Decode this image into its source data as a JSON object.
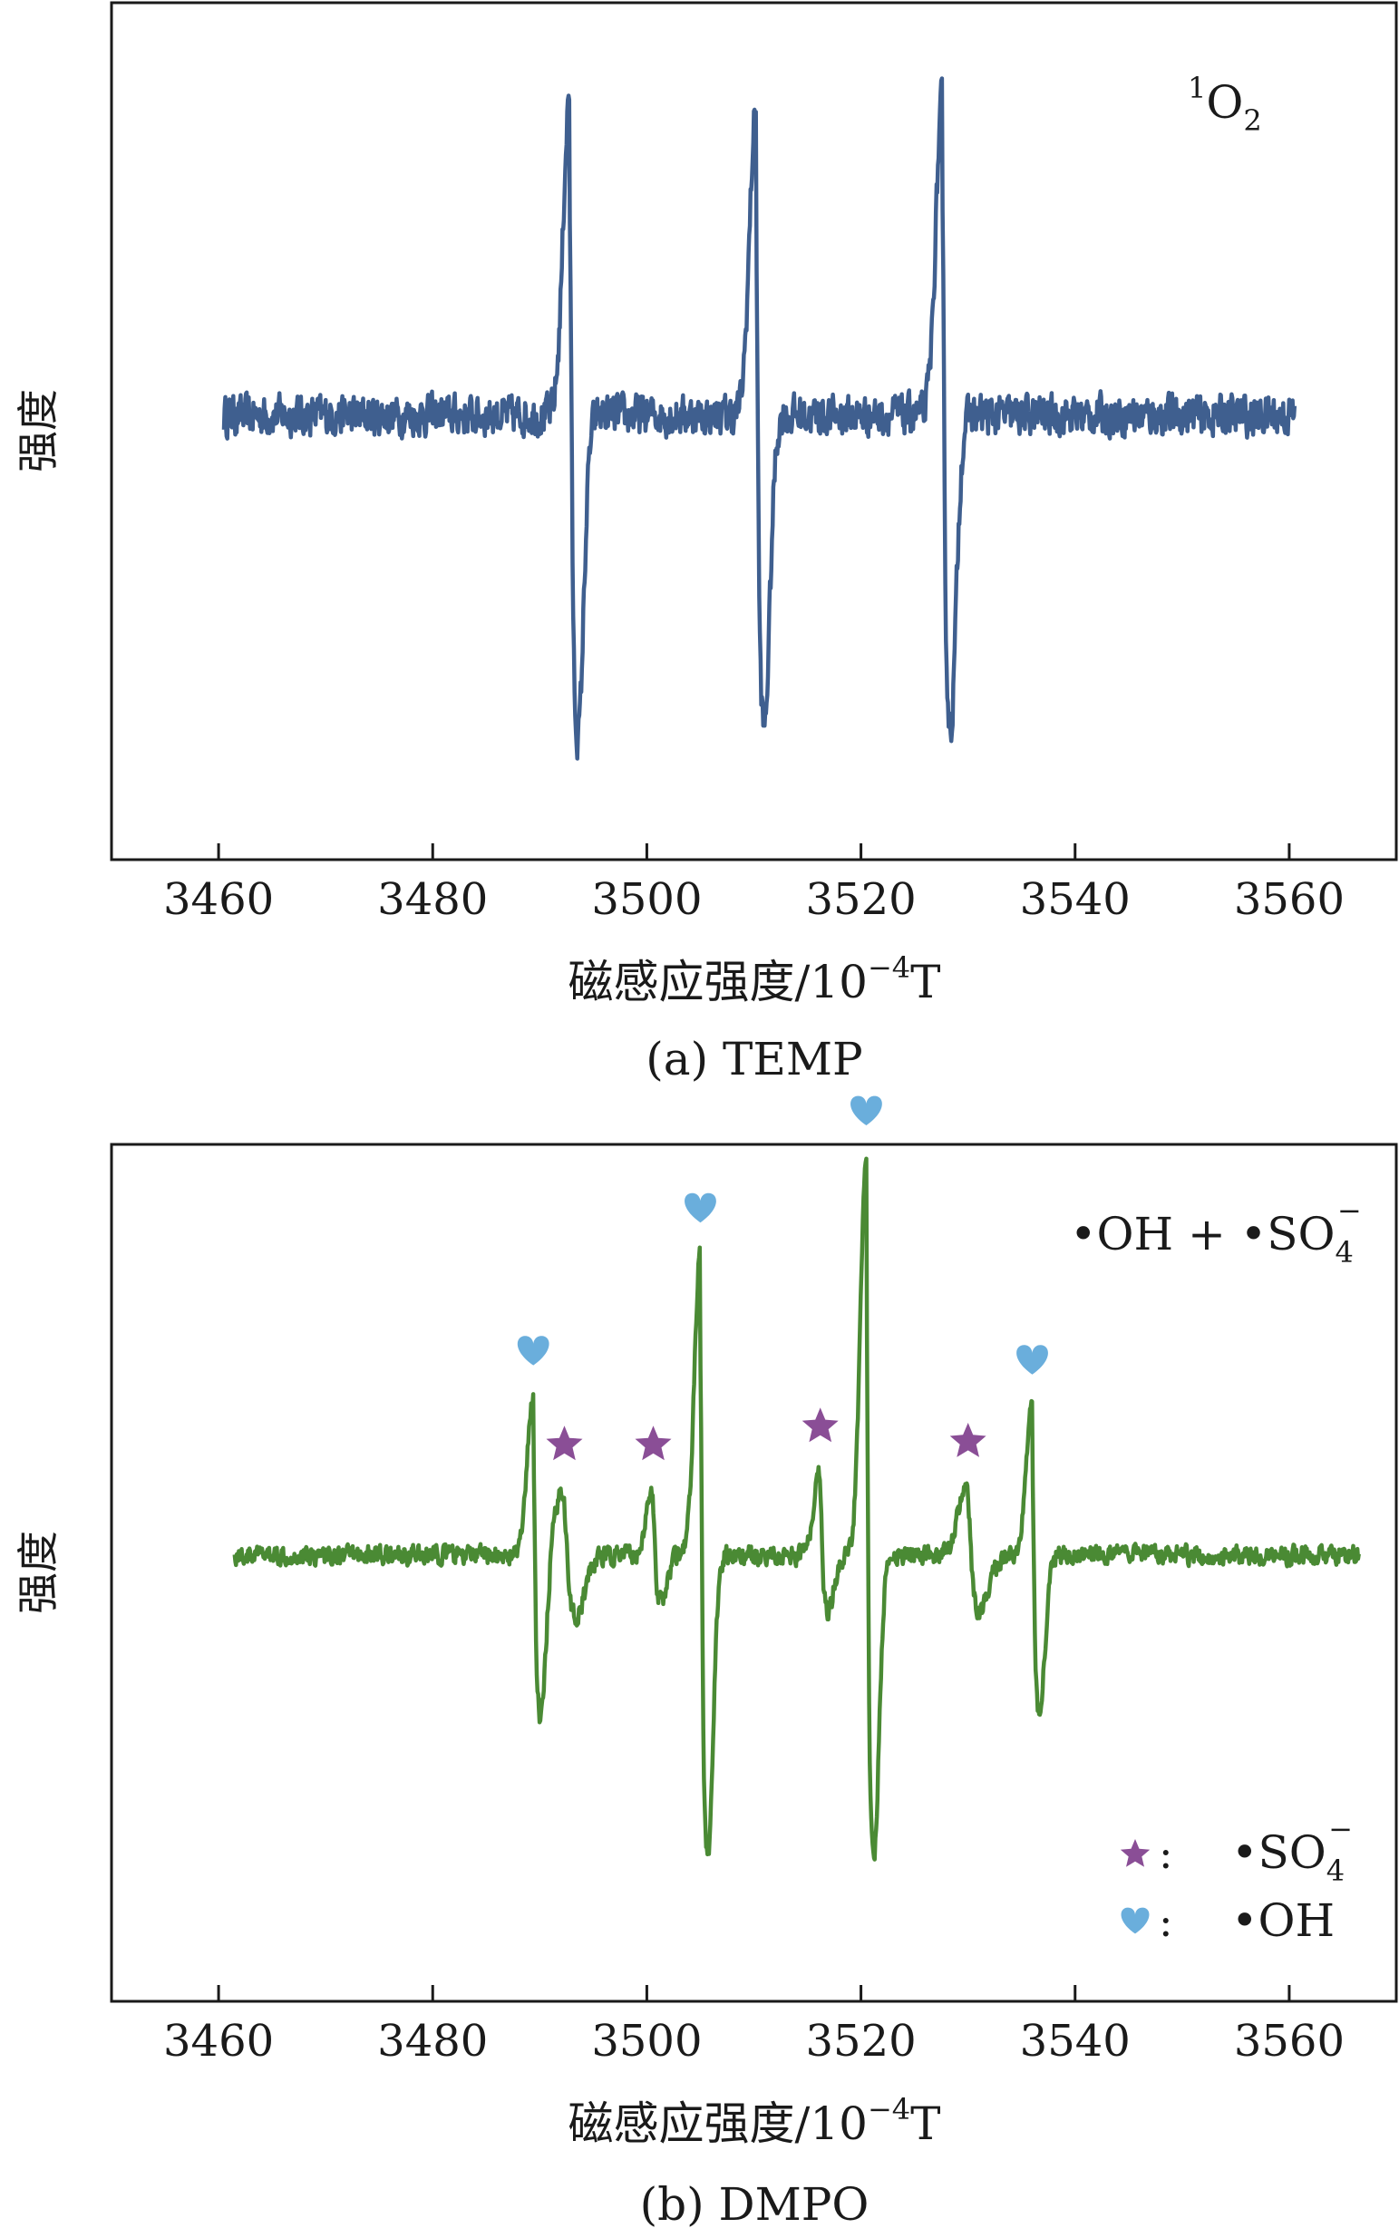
{
  "charts": [
    {
      "type": "line",
      "panel_label": "(a) TEMP",
      "annotation": {
        "main": "O",
        "sup": "1",
        "sub": "2"
      },
      "ylabel": "强度",
      "xlabel": {
        "text": "磁感应强度/10",
        "sup": "−4",
        "unit": "T"
      },
      "xlim": [
        3450,
        3570
      ],
      "xticks": [
        3460,
        3480,
        3500,
        3520,
        3540,
        3560
      ],
      "yticks": [],
      "line_color": "#3f5f8f",
      "series": [
        {
          "x_range": [
            3460.5,
            3560.5
          ],
          "baseline": 0,
          "noise": 0.05,
          "peaks": [
            {
              "center": 3492.8,
              "width": 0.6,
              "up": 1.0,
              "down": -1.0
            },
            {
              "center": 3510.2,
              "width": 0.6,
              "up": 0.95,
              "down": -0.97
            },
            {
              "center": 3527.6,
              "width": 0.6,
              "up": 0.98,
              "down": -0.97
            }
          ]
        }
      ]
    },
    {
      "type": "line",
      "panel_label": "(b) DMPO",
      "annotation": {
        "text": "•OH + •SO",
        "sub": "4",
        "sup": "−"
      },
      "ylabel": "强度",
      "xlabel": {
        "text": "磁感应强度/10",
        "sup": "−4",
        "unit": "T"
      },
      "xlim": [
        3450,
        3570
      ],
      "xticks": [
        3460,
        3480,
        3500,
        3520,
        3540,
        3560
      ],
      "yticks": [],
      "line_color": "#4a8a34",
      "marker_colors": {
        "heart": "#6aaedc",
        "star": "#8a4e96"
      },
      "legend": {
        "position": "bottom-right",
        "items": [
          {
            "marker": "star",
            "sep": ":",
            "text": "•SO",
            "sub": "4",
            "sup": "−"
          },
          {
            "marker": "heart",
            "sep": ":",
            "text": "•OH"
          }
        ]
      },
      "series": [
        {
          "x_range": [
            3461.5,
            3566.5
          ],
          "baseline": 0,
          "noise": 0.025,
          "peaks": [
            {
              "center": 3489.4,
              "width": 0.55,
              "up": 0.53,
              "down": -0.55,
              "marker": "heart"
            },
            {
              "center": 3492.3,
              "width": 0.9,
              "up": 0.22,
              "down": -0.2,
              "marker": "star"
            },
            {
              "center": 3500.6,
              "width": 0.6,
              "up": 0.22,
              "down": -0.15,
              "marker": "star"
            },
            {
              "center": 3505.0,
              "width": 0.55,
              "up": 1.0,
              "down": -1.0,
              "marker": "heart"
            },
            {
              "center": 3516.2,
              "width": 0.6,
              "up": 0.28,
              "down": -0.18,
              "marker": "star"
            },
            {
              "center": 3520.5,
              "width": 0.55,
              "up": 1.32,
              "down": -1.0,
              "marker": "heart"
            },
            {
              "center": 3530.0,
              "width": 0.9,
              "up": 0.23,
              "down": -0.19,
              "marker": "star"
            },
            {
              "center": 3536.0,
              "width": 0.55,
              "up": 0.5,
              "down": -0.52,
              "marker": "heart"
            }
          ]
        }
      ]
    }
  ]
}
